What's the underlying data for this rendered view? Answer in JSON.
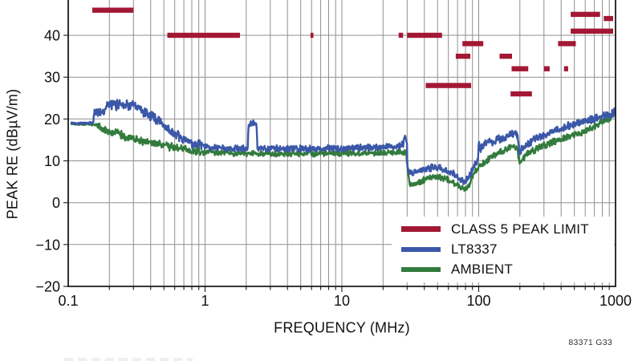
{
  "figure": {
    "code": "83371 G33"
  },
  "chart_data": {
    "type": "line",
    "title": "",
    "xlabel": "FREQUENCY (MHz)",
    "ylabel": "PEAK RE (dBµV/m)",
    "x_scale": "log",
    "x_range": [
      0.1,
      1000
    ],
    "x_ticks": [
      0.1,
      1,
      10,
      100,
      1000
    ],
    "x_tick_labels": [
      "0.1",
      "1",
      "10",
      "100",
      "1000"
    ],
    "y_range_visible": [
      -20,
      48
    ],
    "y_ticks": [
      50,
      40,
      30,
      20,
      10,
      0,
      -10,
      -20
    ],
    "y_tick_labels": [
      "50",
      "40",
      "30",
      "20",
      "10",
      "0",
      "−10",
      "−20"
    ],
    "grid": "minor-log vertical lines, 10 dB horizontal lines",
    "legend_position": "inside-bottom-right",
    "colors": {
      "limit": "#A21834",
      "lt8337": "#3B57A8",
      "ambient": "#337B3D",
      "grid": "#8F8F8F",
      "frame": "#1A1A1A"
    },
    "legend": [
      {
        "label": "CLASS 5 PEAK LIMIT",
        "series": "limit"
      },
      {
        "label": "LT8337",
        "series": "lt8337"
      },
      {
        "label": "AMBIENT",
        "series": "ambient"
      }
    ],
    "limit_segments": [
      {
        "f_start": 0.15,
        "f_stop": 0.3,
        "level_db": 46
      },
      {
        "f_start": 0.53,
        "f_stop": 1.8,
        "level_db": 40
      },
      {
        "f_start": 5.9,
        "f_stop": 6.2,
        "level_db": 40
      },
      {
        "f_start": 26,
        "f_stop": 28,
        "level_db": 40
      },
      {
        "f_start": 30,
        "f_stop": 54,
        "level_db": 40
      },
      {
        "f_start": 41,
        "f_stop": 88,
        "level_db": 28
      },
      {
        "f_start": 68,
        "f_stop": 87,
        "level_db": 35
      },
      {
        "f_start": 76,
        "f_stop": 108,
        "level_db": 38
      },
      {
        "f_start": 142,
        "f_stop": 175,
        "level_db": 35
      },
      {
        "f_start": 171,
        "f_stop": 245,
        "level_db": 26
      },
      {
        "f_start": 174,
        "f_stop": 230,
        "level_db": 32
      },
      {
        "f_start": 300,
        "f_stop": 330,
        "level_db": 32
      },
      {
        "f_start": 380,
        "f_stop": 512,
        "level_db": 38
      },
      {
        "f_start": 420,
        "f_stop": 450,
        "level_db": 32
      },
      {
        "f_start": 470,
        "f_stop": 770,
        "level_db": 45
      },
      {
        "f_start": 470,
        "f_stop": 960,
        "level_db": 41
      },
      {
        "f_start": 820,
        "f_stop": 960,
        "level_db": 44
      }
    ],
    "series": [
      {
        "name": "AMBIENT",
        "points": [
          [
            0.105,
            18.8
          ],
          [
            0.14,
            18.8
          ],
          [
            0.16,
            18.6
          ],
          [
            0.175,
            17.8
          ],
          [
            0.19,
            17.2
          ],
          [
            0.21,
            16.6
          ],
          [
            0.23,
            16.8
          ],
          [
            0.25,
            16.0
          ],
          [
            0.27,
            15.5
          ],
          [
            0.29,
            15.7
          ],
          [
            0.32,
            15.0
          ],
          [
            0.35,
            14.6
          ],
          [
            0.38,
            14.8
          ],
          [
            0.41,
            14.2
          ],
          [
            0.45,
            13.9
          ],
          [
            0.49,
            14.1
          ],
          [
            0.54,
            13.5
          ],
          [
            0.59,
            13.2
          ],
          [
            0.65,
            12.9
          ],
          [
            0.72,
            12.7
          ],
          [
            0.81,
            12.4
          ],
          [
            0.92,
            12.2
          ],
          [
            1.05,
            12.05
          ],
          [
            1.2,
            12.0
          ],
          [
            1.4,
            11.9
          ],
          [
            1.7,
            11.8
          ],
          [
            2.0,
            11.8
          ],
          [
            2.5,
            11.7
          ],
          [
            3.0,
            11.8
          ],
          [
            4.0,
            11.7
          ],
          [
            5.0,
            11.8
          ],
          [
            6.5,
            11.7
          ],
          [
            8.0,
            11.8
          ],
          [
            10,
            11.9
          ],
          [
            13,
            11.9
          ],
          [
            16,
            12.0
          ],
          [
            20,
            12.0
          ],
          [
            24,
            12.1
          ],
          [
            27,
            12.1
          ],
          [
            29.5,
            12.1
          ],
          [
            30.1,
            8.5
          ],
          [
            30.6,
            6.0
          ],
          [
            31.5,
            4.6
          ],
          [
            33,
            4.1
          ],
          [
            35,
            4.4
          ],
          [
            38,
            5.1
          ],
          [
            41,
            5.6
          ],
          [
            45,
            6.0
          ],
          [
            49,
            6.2
          ],
          [
            53,
            6.1
          ],
          [
            57,
            5.9
          ],
          [
            61,
            5.4
          ],
          [
            65,
            4.8
          ],
          [
            69,
            4.3
          ],
          [
            73,
            3.8
          ],
          [
            77,
            3.4
          ],
          [
            80,
            3.3
          ],
          [
            83,
            3.7
          ],
          [
            86,
            4.6
          ],
          [
            89,
            5.8
          ],
          [
            92,
            6.8
          ],
          [
            95,
            7.6
          ],
          [
            98,
            8.2
          ],
          [
            102,
            8.8
          ],
          [
            106,
            9.2
          ],
          [
            110,
            9.7
          ],
          [
            115,
            10.2
          ],
          [
            120,
            10.7
          ],
          [
            126,
            11.1
          ],
          [
            132,
            11.5
          ],
          [
            139,
            11.9
          ],
          [
            146,
            12.2
          ],
          [
            154,
            12.5
          ],
          [
            163,
            12.9
          ],
          [
            172,
            13.2
          ],
          [
            182,
            13.5
          ],
          [
            190,
            13.2
          ],
          [
            195,
            11.0
          ],
          [
            199,
            9.4
          ],
          [
            203,
            9.8
          ],
          [
            209,
            10.4
          ],
          [
            217,
            11.0
          ],
          [
            227,
            11.6
          ],
          [
            239,
            12.1
          ],
          [
            253,
            12.6
          ],
          [
            270,
            13.0
          ],
          [
            290,
            13.5
          ],
          [
            313,
            13.9
          ],
          [
            340,
            14.4
          ],
          [
            370,
            14.8
          ],
          [
            403,
            15.2
          ],
          [
            440,
            15.7
          ],
          [
            480,
            16.1
          ],
          [
            525,
            16.5
          ],
          [
            575,
            17.0
          ],
          [
            630,
            17.6
          ],
          [
            690,
            18.2
          ],
          [
            755,
            18.9
          ],
          [
            825,
            19.6
          ],
          [
            900,
            20.3
          ],
          [
            1000,
            21.3
          ]
        ]
      },
      {
        "name": "LT8337",
        "points": [
          [
            0.105,
            19.0
          ],
          [
            0.13,
            19.0
          ],
          [
            0.152,
            19.0
          ],
          [
            0.154,
            21.6
          ],
          [
            0.17,
            21.8
          ],
          [
            0.183,
            21.7
          ],
          [
            0.187,
            23.2
          ],
          [
            0.21,
            23.4
          ],
          [
            0.225,
            23.3
          ],
          [
            0.24,
            23.8
          ],
          [
            0.26,
            23.6
          ],
          [
            0.28,
            23.2
          ],
          [
            0.3,
            23.4
          ],
          [
            0.315,
            22.4
          ],
          [
            0.33,
            22.8
          ],
          [
            0.35,
            21.6
          ],
          [
            0.37,
            21.9
          ],
          [
            0.39,
            20.7
          ],
          [
            0.42,
            20.9
          ],
          [
            0.44,
            19.6
          ],
          [
            0.47,
            19.7
          ],
          [
            0.5,
            18.3
          ],
          [
            0.54,
            17.5
          ],
          [
            0.58,
            16.7
          ],
          [
            0.62,
            16.0
          ],
          [
            0.67,
            15.4
          ],
          [
            0.72,
            14.9
          ],
          [
            0.79,
            14.3
          ],
          [
            0.88,
            13.8
          ],
          [
            1.0,
            13.4
          ],
          [
            1.15,
            13.2
          ],
          [
            1.3,
            13.1
          ],
          [
            1.5,
            13.0
          ],
          [
            1.7,
            12.9
          ],
          [
            1.9,
            12.9
          ],
          [
            2.05,
            12.9
          ],
          [
            2.08,
            18.5
          ],
          [
            2.15,
            18.8
          ],
          [
            2.3,
            19.0
          ],
          [
            2.38,
            18.6
          ],
          [
            2.42,
            13.0
          ],
          [
            2.6,
            12.9
          ],
          [
            3.0,
            12.9
          ],
          [
            4.0,
            12.9
          ],
          [
            5.0,
            12.9
          ],
          [
            6.0,
            12.9
          ],
          [
            7.0,
            12.9
          ],
          [
            8.0,
            13.0
          ],
          [
            10,
            13.0
          ],
          [
            12,
            13.0
          ],
          [
            14,
            13.1
          ],
          [
            17,
            13.2
          ],
          [
            20,
            13.3
          ],
          [
            23,
            13.4
          ],
          [
            26,
            13.5
          ],
          [
            28,
            13.9
          ],
          [
            28.7,
            15.6
          ],
          [
            29.5,
            15.2
          ],
          [
            29.9,
            14.2
          ],
          [
            30.1,
            8.8
          ],
          [
            31,
            7.6
          ],
          [
            33,
            7.1
          ],
          [
            35,
            7.3
          ],
          [
            38,
            7.8
          ],
          [
            41,
            8.0
          ],
          [
            45,
            8.4
          ],
          [
            49,
            8.5
          ],
          [
            53,
            8.2
          ],
          [
            57,
            7.9
          ],
          [
            61,
            7.4
          ],
          [
            65,
            6.9
          ],
          [
            69,
            6.2
          ],
          [
            73,
            5.7
          ],
          [
            77,
            5.2
          ],
          [
            80,
            5.1
          ],
          [
            83,
            5.5
          ],
          [
            86,
            6.6
          ],
          [
            89,
            7.8
          ],
          [
            92,
            8.8
          ],
          [
            95,
            9.4
          ],
          [
            98,
            10.0
          ],
          [
            99.5,
            10.4
          ],
          [
            100,
            15.3
          ],
          [
            101,
            13.3
          ],
          [
            103,
            13.0
          ],
          [
            106,
            13.2
          ],
          [
            109,
            13.7
          ],
          [
            112,
            14.3
          ],
          [
            116,
            14.0
          ],
          [
            120,
            15.1
          ],
          [
            124,
            14.3
          ],
          [
            128,
            14.6
          ],
          [
            132,
            15.0
          ],
          [
            136,
            15.5
          ],
          [
            140,
            15.8
          ],
          [
            144,
            14.9
          ],
          [
            149,
            15.2
          ],
          [
            155,
            15.5
          ],
          [
            162,
            15.8
          ],
          [
            170,
            16.1
          ],
          [
            178,
            16.3
          ],
          [
            186,
            16.5
          ],
          [
            192,
            16.0
          ],
          [
            196,
            13.6
          ],
          [
            199,
            11.9
          ],
          [
            203,
            12.2
          ],
          [
            208,
            12.8
          ],
          [
            215,
            13.3
          ],
          [
            224,
            13.9
          ],
          [
            235,
            14.4
          ],
          [
            247,
            14.9
          ],
          [
            262,
            15.3
          ],
          [
            280,
            15.8
          ],
          [
            300,
            16.2
          ],
          [
            322,
            16.6
          ],
          [
            348,
            17.0
          ],
          [
            375,
            17.4
          ],
          [
            405,
            17.8
          ],
          [
            438,
            18.1
          ],
          [
            472,
            18.5
          ],
          [
            510,
            18.8
          ],
          [
            550,
            19.1
          ],
          [
            595,
            19.4
          ],
          [
            645,
            19.8
          ],
          [
            700,
            20.1
          ],
          [
            755,
            20.4
          ],
          [
            815,
            20.7
          ],
          [
            880,
            21.0
          ],
          [
            945,
            21.3
          ],
          [
            1000,
            21.6
          ]
        ]
      }
    ]
  }
}
